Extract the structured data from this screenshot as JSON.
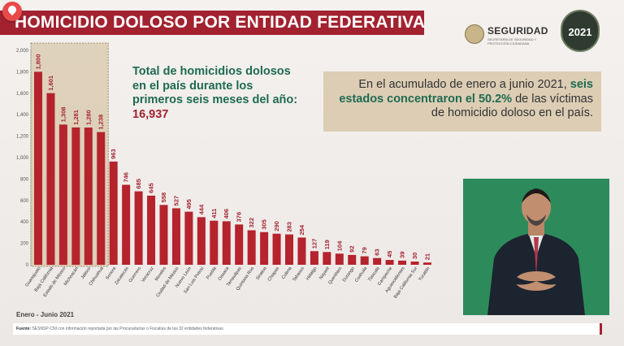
{
  "header": {
    "title": "HOMICIDIO DOLOSO POR ENTIDAD FEDERATIVA",
    "agency": "SEGURIDAD",
    "agency_sub": "SECRETARÍA DE SEGURIDAD Y PROTECCIÓN CIUDADANA",
    "badge_year": "2021"
  },
  "info": {
    "total_text": "Total de homicidios dolosos en el país durante los primeros seis meses del año:",
    "total_value": "16,937",
    "note_pre": "En el acumulado de enero a junio 2021,",
    "note_bold": "seis estados concentraron el 50.2%",
    "note_post": "de las víctimas de homicidio doloso en el país."
  },
  "footer": {
    "period": "Enero - Junio 2021",
    "source_label": "Fuente:",
    "source_text": "SESNSP-CNI con información reportada por las Procuradurías o Fiscalías de las 32 entidades federativas."
  },
  "colors": {
    "bar": "#b5232c",
    "accent": "#a2222f",
    "highlight": "#c7ad7c",
    "text_green": "#1f6b52"
  },
  "chart_data": {
    "type": "bar",
    "title": "HOMICIDIO DOLOSO POR ENTIDAD FEDERATIVA",
    "xlabel": "",
    "ylabel": "",
    "ylim": [
      0,
      2000
    ],
    "yticks": [
      0,
      200,
      400,
      600,
      800,
      1000,
      1200,
      1400,
      1600,
      1800,
      2000
    ],
    "ytick_labels": [
      "0",
      "200",
      "400",
      "600",
      "800",
      "1,000",
      "1,200",
      "1,400",
      "1,600",
      "1,800",
      "2,000"
    ],
    "grid": false,
    "highlight_top_n": 6,
    "categories": [
      "Guanajuato",
      "Baja California",
      "Estado de México",
      "Michoacán",
      "Jalisco",
      "Chihuahua",
      "Sonora",
      "Zacatecas",
      "Guerrero",
      "Veracruz",
      "Morelos",
      "Ciudad de México",
      "Nuevo León",
      "San Luis Potosí",
      "Puebla",
      "Oaxaca",
      "Tamaulipas",
      "Quintana Roo",
      "Sinaloa",
      "Chiapas",
      "Colima",
      "Tabasco",
      "Hidalgo",
      "Nayarit",
      "Querétaro",
      "Durango",
      "Coahuila",
      "Tlaxcala",
      "Campeche",
      "Aguascalientes",
      "Baja California Sur",
      "Yucatán"
    ],
    "values": [
      1800,
      1601,
      1308,
      1281,
      1280,
      1238,
      963,
      746,
      685,
      645,
      558,
      527,
      495,
      444,
      411,
      406,
      376,
      322,
      305,
      290,
      283,
      254,
      127,
      119,
      104,
      92,
      79,
      63,
      45,
      39,
      30,
      21
    ],
    "value_labels": [
      "1,800",
      "1,601",
      "1,308",
      "1,281",
      "1,280",
      "1,238",
      "963",
      "746",
      "685",
      "645",
      "558",
      "527",
      "495",
      "444",
      "411",
      "406",
      "376",
      "322",
      "305",
      "290",
      "283",
      "254",
      "127",
      "119",
      "104",
      "92",
      "79",
      "63",
      "45",
      "39",
      "30",
      "21"
    ]
  }
}
